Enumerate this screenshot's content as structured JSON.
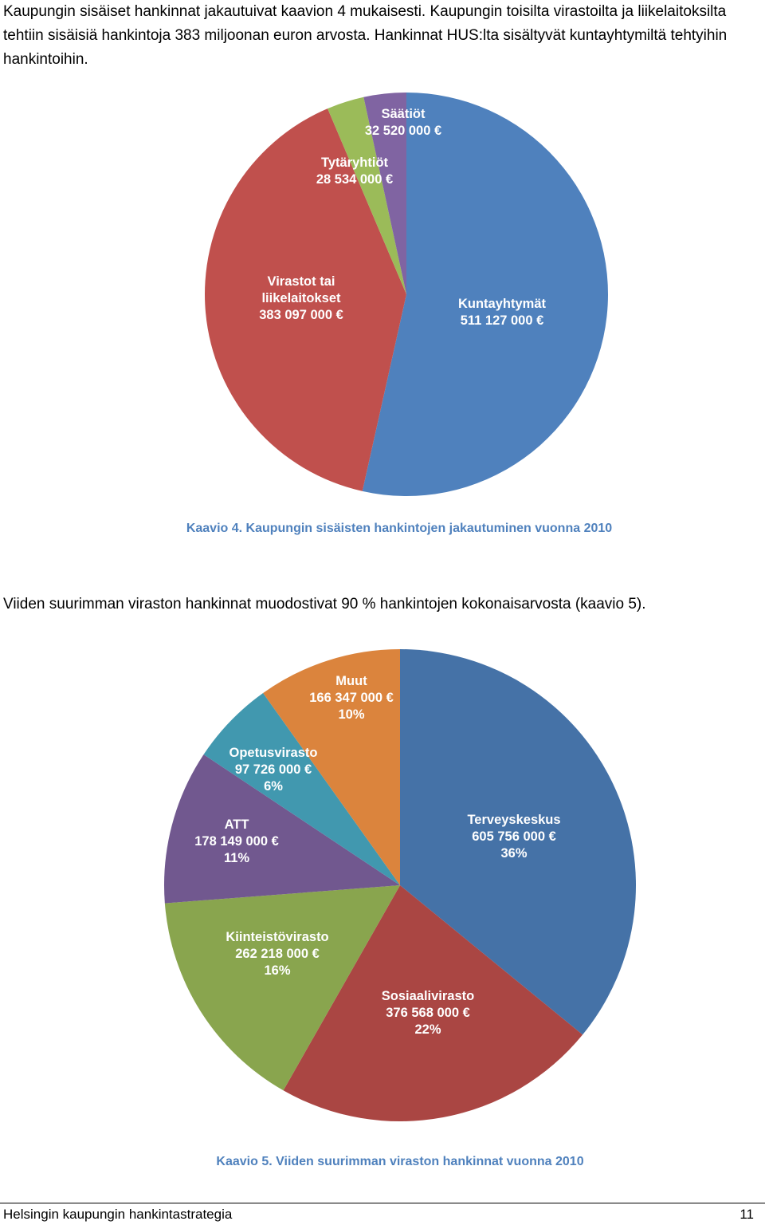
{
  "document": {
    "paragraph_1": "Kaupungin sisäiset hankinnat jakautuivat kaavion 4 mukaisesti. Kaupungin toisilta virastoilta ja liikelaitoksilta tehtiin sisäisiä hankintoja 383 miljoonan euron arvosta. Hankinnat HUS:lta sisältyvät kuntayhtymiltä tehtyihin hankintoihin.",
    "paragraph_2": "Viiden suurimman viraston hankinnat muodostivat 90 % hankintojen kokonaisarvosta (kaavio 5).",
    "footer_title": "Helsingin kaupungin hankintastrategia",
    "footer_page": "11"
  },
  "chart_data": [
    {
      "type": "pie",
      "title": "Kaavio 4. Kaupungin sisäisten hankintojen jakautuminen vuonna 2010",
      "unit": "€",
      "slices": [
        {
          "name": "Kuntayhtymät",
          "value": 511127000,
          "value_label": "511 127 000 €",
          "color": "#4f81bd"
        },
        {
          "name": "Virastot tai liikelaitokset",
          "value": 383097000,
          "value_label": "383 097 000 €",
          "color": "#c0504d"
        },
        {
          "name": "Tytäryhtiöt",
          "value": 28534000,
          "value_label": "28 534 000 €",
          "color": "#9bbb59"
        },
        {
          "name": "Säätiöt",
          "value": 32520000,
          "value_label": "32 520 000 €",
          "color": "#8064a2"
        }
      ]
    },
    {
      "type": "pie",
      "title": "Kaavio 5. Viiden suurimman viraston hankinnat vuonna 2010",
      "unit": "€",
      "slices": [
        {
          "name": "Terveyskeskus",
          "value": 605756000,
          "value_label": "605 756 000 €",
          "percent": "36%",
          "color": "#4572a7"
        },
        {
          "name": "Sosiaalivirasto",
          "value": 376568000,
          "value_label": "376 568 000 €",
          "percent": "22%",
          "color": "#aa4643"
        },
        {
          "name": "Kiinteistövirasto",
          "value": 262218000,
          "value_label": "262 218 000 €",
          "percent": "16%",
          "color": "#89a54e"
        },
        {
          "name": "ATT",
          "value": 178149000,
          "value_label": "178 149 000 €",
          "percent": "11%",
          "color": "#71588f"
        },
        {
          "name": "Opetusvirasto",
          "value": 97726000,
          "value_label": "97 726 000 €",
          "percent": "6%",
          "color": "#4198af"
        },
        {
          "name": "Muut",
          "value": 166347000,
          "value_label": "166 347 000 €",
          "percent": "10%",
          "color": "#db843d"
        }
      ]
    }
  ]
}
